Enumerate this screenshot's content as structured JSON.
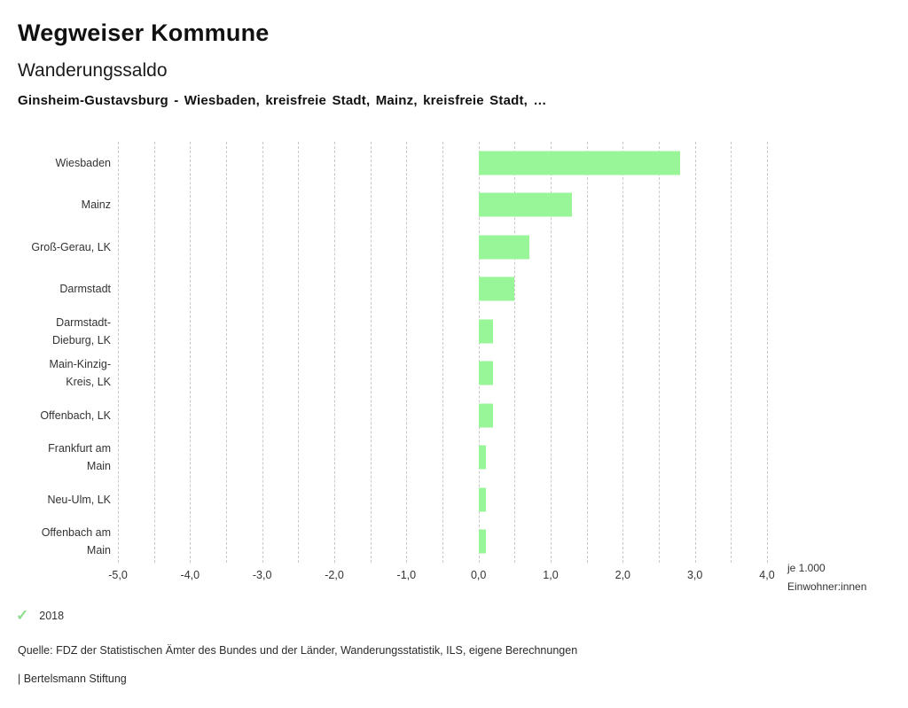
{
  "header": {
    "app_title": "Wegweiser Kommune",
    "chart_title": "Wanderungssaldo",
    "chart_subtitle": "Ginsheim-Gustavsburg - Wiesbaden, kreisfreie Stadt, Mainz, kreisfreie Stadt, …"
  },
  "chart_data": {
    "type": "bar",
    "orientation": "horizontal",
    "title": "Wanderungssaldo",
    "categories": [
      "Wiesbaden",
      "Mainz",
      "Groß-Gerau, LK",
      "Darmstadt",
      "Darmstadt-Dieburg, LK",
      "Main-Kinzig-Kreis, LK",
      "Offenbach, LK",
      "Frankfurt am Main",
      "Neu-Ulm, LK",
      "Offenbach am Main"
    ],
    "categories_display": [
      "Wiesbaden",
      "Mainz",
      "Groß-Gerau, LK",
      "Darmstadt",
      "Darmstadt-\nDieburg, LK",
      "Main-Kinzig-\nKreis, LK",
      "Offenbach, LK",
      "Frankfurt am\nMain",
      "Neu-Ulm, LK",
      "Offenbach am\nMain"
    ],
    "series": [
      {
        "name": "2018",
        "values": [
          2.8,
          1.3,
          0.7,
          0.5,
          0.2,
          0.2,
          0.2,
          0.1,
          0.1,
          0.1
        ]
      }
    ],
    "values": [
      2.8,
      1.3,
      0.7,
      0.5,
      0.2,
      0.2,
      0.2,
      0.1,
      0.1,
      0.1
    ],
    "xlabel": "je 1.000\nEinwohner:innen",
    "ylabel": "",
    "xlim": [
      -5.0,
      4.0
    ],
    "grid": true,
    "grid_step": 0.5,
    "tick_step": 1.0,
    "tick_labels": [
      "-5,0",
      "-4,0",
      "-3,0",
      "-2,0",
      "-1,0",
      "0,0",
      "1,0",
      "2,0",
      "3,0",
      "4,0"
    ],
    "bar_color": "#98f598",
    "gridline_color": "#c8c8c8",
    "legend_position": "bottom-left"
  },
  "legend": {
    "check_icon": "✓",
    "check_color": "#8fdd8f",
    "year_label": "2018"
  },
  "footer": {
    "source": "Quelle: FDZ der Statistischen Ämter des Bundes und der Länder, Wanderungsstatistik, ILS, eigene Berechnungen",
    "branding": "| Bertelsmann Stiftung"
  }
}
